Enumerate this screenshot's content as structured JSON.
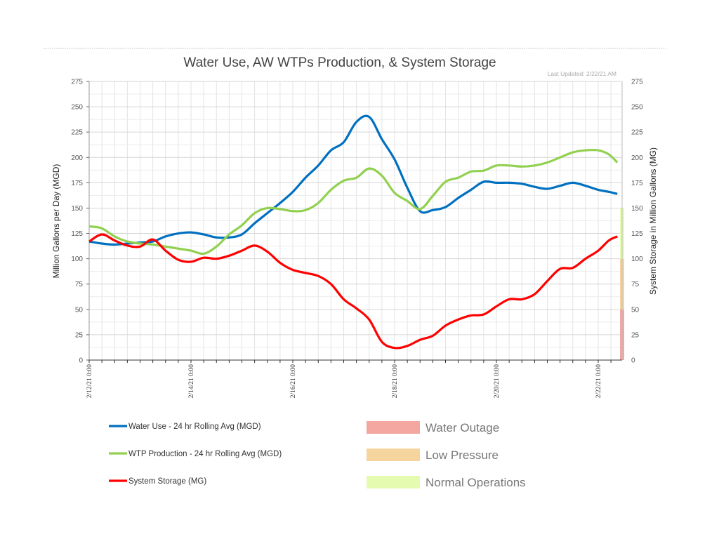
{
  "chart_data": {
    "type": "line",
    "title": "Water Use, AW WTPs Production, & System Storage",
    "subtitle": "Last Updated: 2/22/21 AM",
    "ylabel": "Million Gallons per Day (MGD)",
    "y2label": "System Storage in Million Gallons (MG)",
    "ylim": [
      0,
      275
    ],
    "y2lim": [
      0,
      275
    ],
    "yticks": [
      0,
      25,
      50,
      75,
      100,
      125,
      150,
      175,
      200,
      225,
      250,
      275
    ],
    "xlim": [
      "2/12/21 0:00",
      "2/22/21 12:00"
    ],
    "xticks": [
      "2/12/21 0:00",
      "2/14/21 0:00",
      "2/16/21 0:00",
      "2/18/21 0:00",
      "2/20/21 0:00",
      "2/22/21 0:00"
    ],
    "grid": true,
    "legend": "bottom",
    "x": [
      "2/12/21 0:00",
      "2/12/21 6:00",
      "2/12/21 12:00",
      "2/12/21 18:00",
      "2/13/21 0:00",
      "2/13/21 6:00",
      "2/13/21 12:00",
      "2/13/21 18:00",
      "2/14/21 0:00",
      "2/14/21 6:00",
      "2/14/21 12:00",
      "2/14/21 18:00",
      "2/15/21 0:00",
      "2/15/21 6:00",
      "2/15/21 12:00",
      "2/15/21 18:00",
      "2/16/21 0:00",
      "2/16/21 6:00",
      "2/16/21 12:00",
      "2/16/21 18:00",
      "2/17/21 0:00",
      "2/17/21 6:00",
      "2/17/21 12:00",
      "2/17/21 18:00",
      "2/18/21 0:00",
      "2/18/21 6:00",
      "2/18/21 12:00",
      "2/18/21 18:00",
      "2/19/21 0:00",
      "2/19/21 6:00",
      "2/19/21 12:00",
      "2/19/21 18:00",
      "2/20/21 0:00",
      "2/20/21 6:00",
      "2/20/21 12:00",
      "2/20/21 18:00",
      "2/21/21 0:00",
      "2/21/21 6:00",
      "2/21/21 12:00",
      "2/21/21 18:00",
      "2/22/21 0:00",
      "2/22/21 5:00",
      "2/22/21 9:00"
    ],
    "series": [
      {
        "name": "Water Use - 24 hr Rolling Avg (MGD)",
        "color": "#0070c0",
        "axis": "left",
        "values": [
          117,
          115,
          114,
          115,
          116,
          117,
          122,
          125,
          126,
          124,
          121,
          121,
          124,
          135,
          145,
          155,
          166,
          180,
          192,
          207,
          215,
          235,
          240,
          218,
          198,
          170,
          147,
          148,
          151,
          160,
          168,
          176,
          175,
          175,
          174,
          171,
          169,
          172,
          175,
          172,
          168,
          166,
          164
        ]
      },
      {
        "name": "WTP Production - 24 hr Rolling Avg (MGD)",
        "color": "#92d050",
        "axis": "left",
        "values": [
          132,
          130,
          122,
          117,
          115,
          114,
          112,
          110,
          108,
          105,
          112,
          124,
          133,
          145,
          150,
          149,
          147,
          148,
          155,
          168,
          177,
          180,
          189,
          182,
          165,
          157,
          149,
          162,
          176,
          180,
          186,
          187,
          192,
          192,
          191,
          192,
          195,
          200,
          205,
          207,
          207,
          203,
          195
        ]
      },
      {
        "name": "System Storage (MG)",
        "color": "#ff0000",
        "axis": "right",
        "values": [
          117,
          124,
          118,
          113,
          112,
          119,
          108,
          99,
          97,
          101,
          100,
          103,
          108,
          113,
          107,
          96,
          89,
          86,
          83,
          75,
          60,
          51,
          40,
          18,
          12,
          14,
          20,
          24,
          34,
          40,
          44,
          45,
          53,
          60,
          60,
          65,
          78,
          90,
          91,
          100,
          108,
          118,
          122
        ]
      }
    ],
    "storage_bands": [
      {
        "label": "Water Outage",
        "from": 0,
        "to": 50,
        "color": "#f4a6a0"
      },
      {
        "label": "Low Pressure",
        "from": 50,
        "to": 100,
        "color": "#f5d49e"
      },
      {
        "label": "Normal Operations",
        "from": 100,
        "to": 150,
        "color": "#e4fbb0"
      }
    ]
  }
}
